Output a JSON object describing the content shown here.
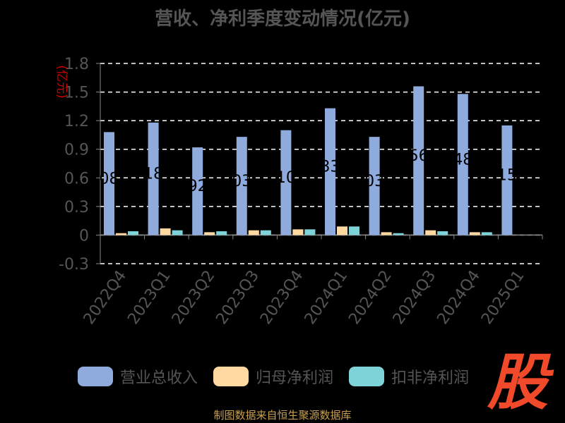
{
  "title": "营收、净利季度变动情况(亿元)",
  "source_note": "制图数据来自恒生聚源数据库",
  "logo_text": "股",
  "colors": {
    "background": "#000000",
    "revenue": "#8FAADC",
    "net_profit": "#FFD9A0",
    "deducted_profit": "#7ED3D9",
    "grid": "#FFFFFF",
    "axis_text": "#555555",
    "unit_text": "#CC0000",
    "logo": "#F04A2A",
    "source": "#C9A050"
  },
  "chart_data": {
    "type": "bar",
    "title": "营收、净利季度变动情况(亿元)",
    "ylabel": "(亿元)",
    "ylim": [
      -0.3,
      1.8
    ],
    "yticks": [
      -0.3,
      0,
      0.3,
      0.6,
      0.9,
      1.2,
      1.5,
      1.8
    ],
    "ytick_labels": [
      "-0.3",
      "0",
      "0.3",
      "0.6",
      "0.9",
      "1.2",
      "1.5",
      "1.8"
    ],
    "grid": true,
    "legend_position": "bottom",
    "categories": [
      "2022Q4",
      "2023Q1",
      "2023Q2",
      "2023Q3",
      "2023Q4",
      "2024Q1",
      "2024Q2",
      "2024Q3",
      "2024Q4",
      "2025Q1"
    ],
    "series": [
      {
        "name": "营业总收入",
        "values": [
          1.08,
          1.18,
          0.92,
          1.03,
          1.1,
          1.33,
          1.03,
          1.56,
          1.48,
          1.15
        ],
        "labels": [
          "08",
          "18",
          "92",
          "03",
          "10",
          "33",
          "03",
          "56",
          "48",
          "15"
        ]
      },
      {
        "name": "归母净利润",
        "values": [
          0.02,
          0.07,
          0.03,
          0.05,
          0.06,
          0.09,
          0.03,
          0.05,
          0.03,
          0.0
        ]
      },
      {
        "name": "扣非净利润",
        "values": [
          0.04,
          0.05,
          0.04,
          0.05,
          0.06,
          0.09,
          0.02,
          0.04,
          0.03,
          0.0
        ]
      }
    ]
  }
}
